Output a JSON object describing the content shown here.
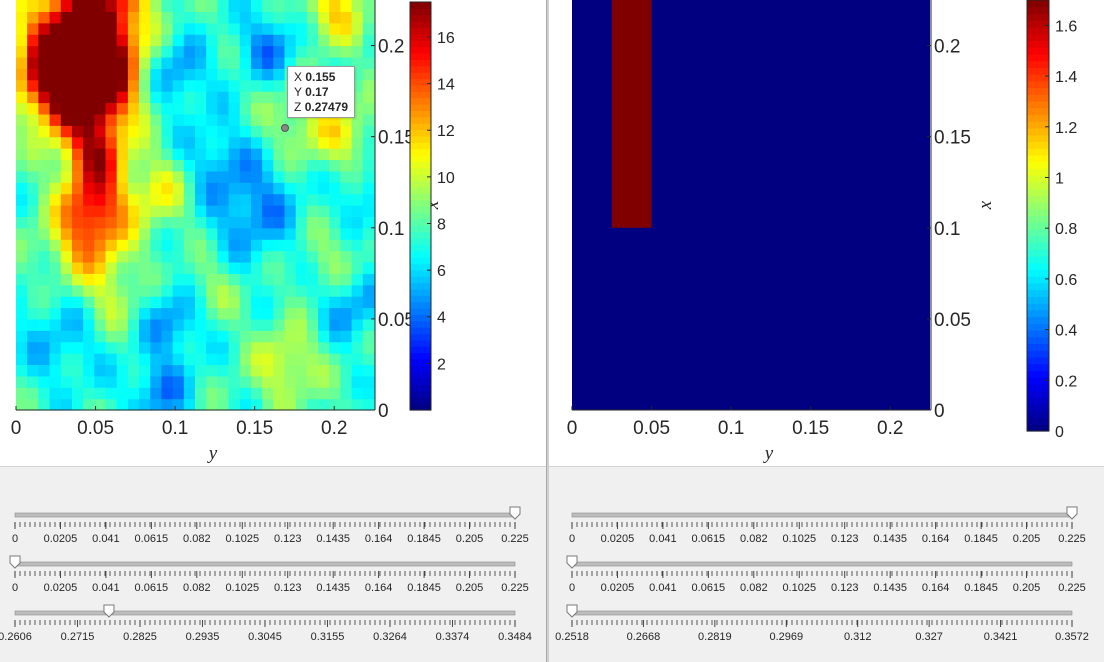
{
  "left": {
    "chart_data": {
      "type": "heatmap",
      "xlabel": "y",
      "ylabel": "x",
      "xlim": [
        0,
        0.225
      ],
      "ylim": [
        0,
        0.225
      ],
      "x_ticks": [
        "0",
        "0.05",
        "0.1",
        "0.15",
        "0.2"
      ],
      "y_ticks": [
        "0",
        "0.05",
        "0.1",
        "0.15",
        "0.2"
      ],
      "colormap": "jet",
      "clim": [
        0,
        17.5
      ],
      "colorbar_ticks": [
        "2",
        "4",
        "6",
        "8",
        "10",
        "12",
        "14",
        "16"
      ]
    },
    "datatip": {
      "x_label": "X",
      "x_value": "0.155",
      "y_label": "Y",
      "y_value": "0.17",
      "z_label": "Z",
      "z_value": "0.27479"
    },
    "sliders": [
      {
        "value": 0.225,
        "min": 0,
        "max": 0.225,
        "labels": [
          "0",
          "0.0205",
          "0.041",
          "0.0615",
          "0.082",
          "0.1025",
          "0.123",
          "0.1435",
          "0.164",
          "0.1845",
          "0.205",
          "0.225"
        ]
      },
      {
        "value": 0,
        "min": 0,
        "max": 0.225,
        "labels": [
          "0",
          "0.0205",
          "0.041",
          "0.0615",
          "0.082",
          "0.1025",
          "0.123",
          "0.1435",
          "0.164",
          "0.1845",
          "0.205",
          "0.225"
        ]
      },
      {
        "value": 0.2771,
        "min": 0.2606,
        "max": 0.3484,
        "labels": [
          "0.2606",
          "0.2715",
          "0.2825",
          "0.2935",
          "0.3045",
          "0.3155",
          "0.3264",
          "0.3374",
          "0.3484"
        ]
      }
    ]
  },
  "right": {
    "chart_data": {
      "type": "heatmap",
      "xlabel": "y",
      "ylabel": "x",
      "xlim": [
        0,
        0.225
      ],
      "ylim": [
        0,
        0.225
      ],
      "x_ticks": [
        "0",
        "0.05",
        "0.1",
        "0.15",
        "0.2"
      ],
      "y_ticks": [
        "0",
        "0.05",
        "0.1",
        "0.15",
        "0.2"
      ],
      "colormap": "jet",
      "clim": [
        0,
        1.7
      ],
      "colorbar_ticks": [
        "0",
        "0.2",
        "0.4",
        "0.6",
        "0.8",
        "1",
        "1.2",
        "1.4",
        "1.6"
      ],
      "background_value": 0,
      "blocks": [
        {
          "y_range": [
            0.025,
            0.05
          ],
          "x_range": [
            0.1,
            0.225
          ],
          "value": 1.7
        }
      ]
    },
    "sliders": [
      {
        "value": 0.225,
        "min": 0,
        "max": 0.225,
        "labels": [
          "0",
          "0.0205",
          "0.041",
          "0.0615",
          "0.082",
          "0.1025",
          "0.123",
          "0.1435",
          "0.164",
          "0.1845",
          "0.205",
          "0.225"
        ]
      },
      {
        "value": 0,
        "min": 0,
        "max": 0.225,
        "labels": [
          "0",
          "0.0205",
          "0.041",
          "0.0615",
          "0.082",
          "0.1025",
          "0.123",
          "0.1435",
          "0.164",
          "0.1845",
          "0.205",
          "0.225"
        ]
      },
      {
        "value": 0.2518,
        "min": 0.2518,
        "max": 0.3572,
        "labels": [
          "0.2518",
          "0.2668",
          "0.2819",
          "0.2969",
          "0.312",
          "0.327",
          "0.3421",
          "0.3572"
        ]
      }
    ]
  }
}
